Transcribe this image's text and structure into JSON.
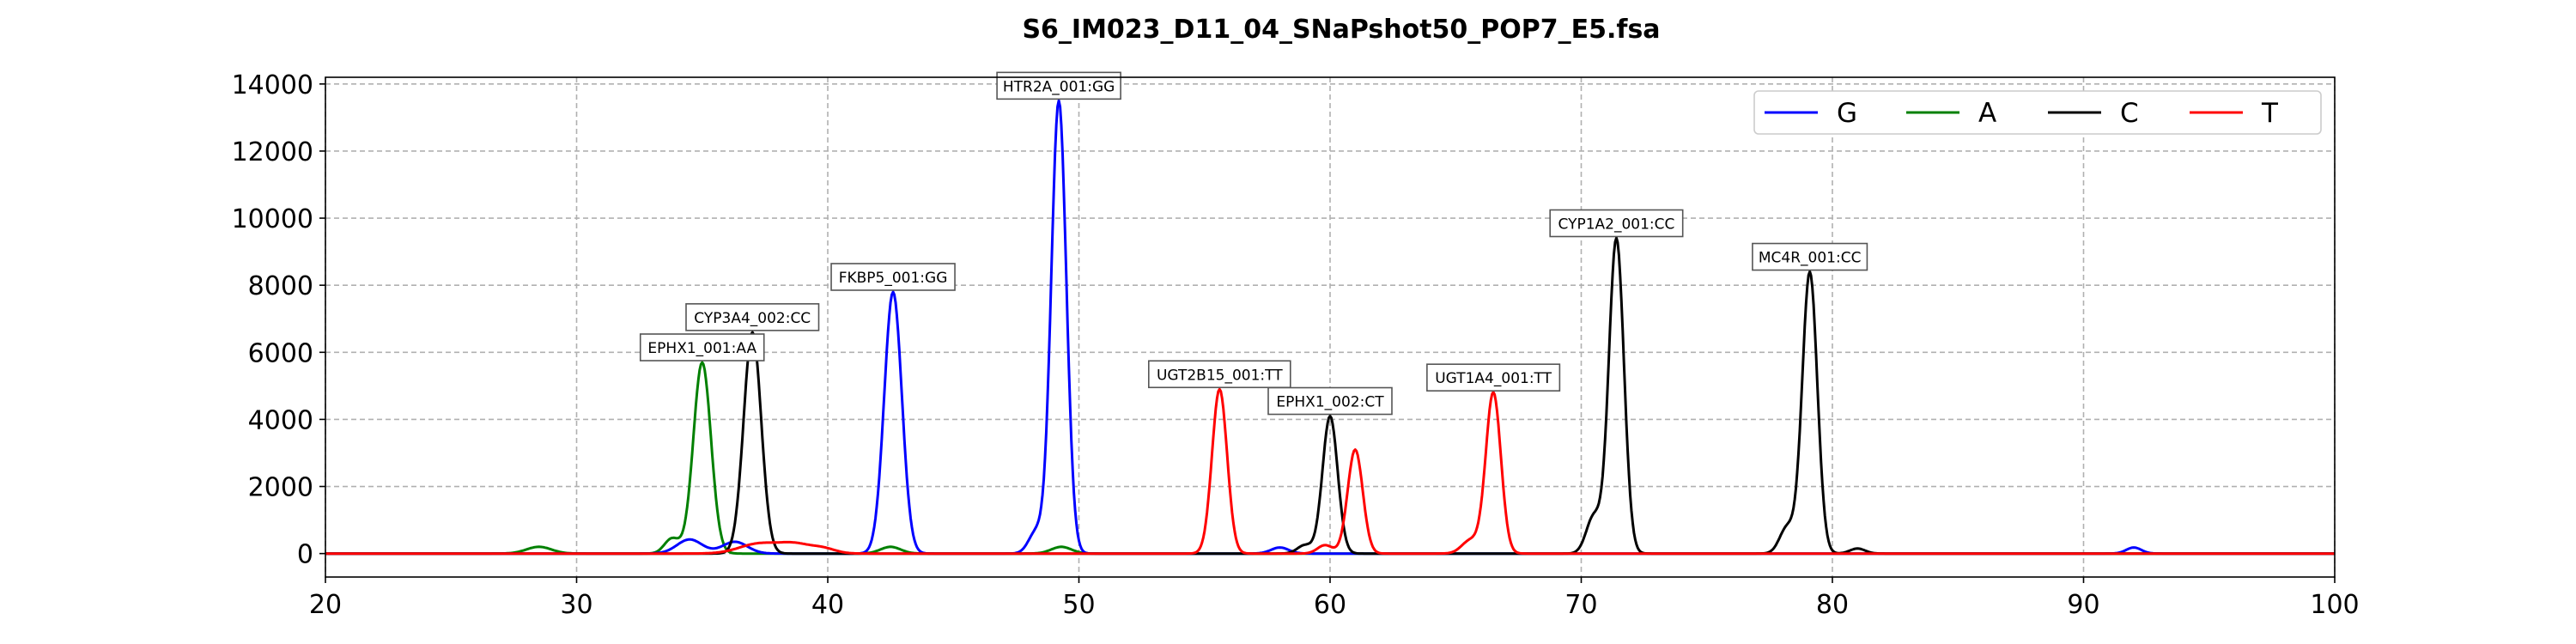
{
  "chart_data": {
    "type": "line",
    "title": "S6_IM023_D11_04_SNaPshot50_POP7_E5.fsa",
    "xlabel": "",
    "ylabel": "",
    "xlim": [
      20,
      100
    ],
    "ylim": [
      -700,
      14200
    ],
    "x_ticks": [
      20,
      30,
      40,
      50,
      60,
      70,
      80,
      90,
      100
    ],
    "x_tick_labels": [
      "20",
      "30",
      "40",
      "50",
      "60",
      "70",
      "80",
      "90",
      "100"
    ],
    "y_ticks": [
      0,
      2000,
      4000,
      6000,
      8000,
      10000,
      12000,
      14000
    ],
    "y_tick_labels": [
      "0",
      "2000",
      "4000",
      "6000",
      "8000",
      "10000",
      "12000",
      "14000"
    ],
    "grid": true,
    "legend_position": "top-right",
    "series": [
      {
        "name": "G",
        "color": "#0000ff",
        "peaks": [
          [
            34.5,
            420,
            0.5
          ],
          [
            36.3,
            350,
            0.5
          ],
          [
            42.6,
            7800,
            0.35
          ],
          [
            48.3,
            650,
            0.3
          ],
          [
            49.2,
            13500,
            0.3
          ],
          [
            58.0,
            180,
            0.35
          ],
          [
            92.0,
            180,
            0.3
          ]
        ]
      },
      {
        "name": "A",
        "color": "#008000",
        "peaks": [
          [
            28.5,
            200,
            0.5
          ],
          [
            33.8,
            450,
            0.3
          ],
          [
            35.0,
            5700,
            0.35
          ],
          [
            42.5,
            200,
            0.4
          ],
          [
            49.3,
            200,
            0.4
          ]
        ]
      },
      {
        "name": "C",
        "color": "#000000",
        "peaks": [
          [
            37.0,
            6600,
            0.35
          ],
          [
            59.0,
            250,
            0.3
          ],
          [
            60.0,
            4100,
            0.3
          ],
          [
            70.5,
            1100,
            0.3
          ],
          [
            71.4,
            9400,
            0.3
          ],
          [
            78.2,
            780,
            0.3
          ],
          [
            79.1,
            8400,
            0.3
          ],
          [
            81.0,
            150,
            0.3
          ]
        ]
      },
      {
        "name": "T",
        "color": "#ff0000",
        "peaks": [
          [
            37.3,
            300,
            0.8
          ],
          [
            38.7,
            250,
            0.6
          ],
          [
            39.8,
            150,
            0.5
          ],
          [
            55.6,
            4900,
            0.3
          ],
          [
            59.8,
            250,
            0.3
          ],
          [
            61.0,
            3100,
            0.3
          ],
          [
            65.6,
            400,
            0.35
          ],
          [
            66.5,
            4800,
            0.3
          ]
        ]
      }
    ],
    "annotations": [
      {
        "text": "EPHX1_001:AA",
        "x": 35.0,
        "y": 5700
      },
      {
        "text": "CYP3A4_002:CC",
        "x": 37.0,
        "y": 6600
      },
      {
        "text": "FKBP5_001:GG",
        "x": 42.6,
        "y": 7800
      },
      {
        "text": "HTR2A_001:GG",
        "x": 49.2,
        "y": 13500
      },
      {
        "text": "UGT2B15_001:TT",
        "x": 55.6,
        "y": 4900
      },
      {
        "text": "EPHX1_002:CT",
        "x": 60.0,
        "y": 4100
      },
      {
        "text": "UGT1A4_001:TT",
        "x": 66.5,
        "y": 4800
      },
      {
        "text": "CYP1A2_001:CC",
        "x": 71.4,
        "y": 9400
      },
      {
        "text": "MC4R_001:CC",
        "x": 79.1,
        "y": 8400
      }
    ]
  }
}
